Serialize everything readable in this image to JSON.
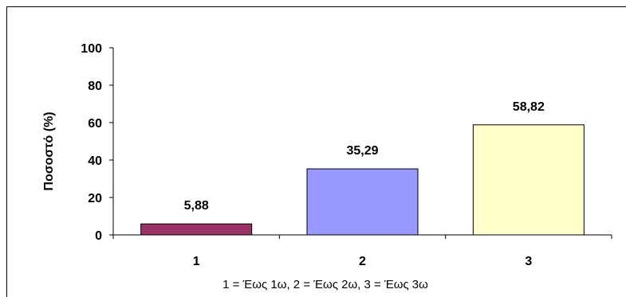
{
  "chart_data": {
    "type": "bar",
    "categories": [
      "1",
      "2",
      "3"
    ],
    "values": [
      5.88,
      35.29,
      58.82
    ],
    "value_labels": [
      "5,88",
      "35,29",
      "58,82"
    ],
    "colors": [
      "#993366",
      "#9999ff",
      "#ffffcc"
    ],
    "title": "",
    "ylabel": "Ποσοστό (%)",
    "xlabel": "1 = Έως 1ω, 2 = Έως 2ω, 3 = Έως 3ω",
    "ylim": [
      0,
      100
    ],
    "yticks": [
      0,
      20,
      40,
      60,
      80,
      100
    ],
    "grid": false,
    "legend": "none"
  }
}
